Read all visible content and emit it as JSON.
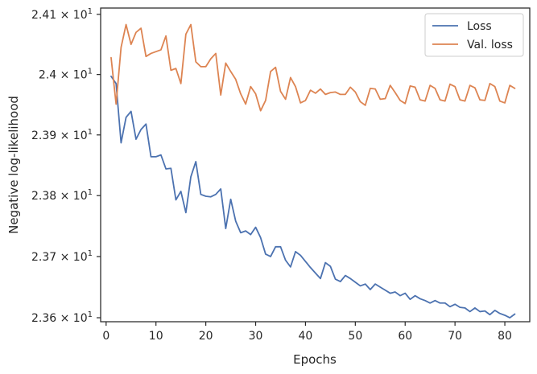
{
  "chart_data": {
    "type": "line",
    "title": "",
    "xlabel": "Epochs",
    "ylabel": "Negative log-likelihood",
    "xlim": [
      -1.1,
      85
    ],
    "ylim": [
      23.5935,
      24.1105
    ],
    "y_scale": "log",
    "grid": false,
    "legend_position": "top-right",
    "x_ticks": [
      0,
      10,
      20,
      30,
      40,
      50,
      60,
      70,
      80
    ],
    "y_ticks": [
      {
        "value": 23.6,
        "mantissa": "2.36",
        "base": "10",
        "exp": "1"
      },
      {
        "value": 23.7,
        "mantissa": "2.37",
        "base": "10",
        "exp": "1"
      },
      {
        "value": 23.8,
        "mantissa": "2.38",
        "base": "10",
        "exp": "1"
      },
      {
        "value": 23.9,
        "mantissa": "2.39",
        "base": "10",
        "exp": "1"
      },
      {
        "value": 24.0,
        "mantissa": "2.4",
        "base": "10",
        "exp": "1"
      },
      {
        "value": 24.1,
        "mantissa": "2.41",
        "base": "10",
        "exp": "1"
      }
    ],
    "x": [
      1,
      2,
      3,
      4,
      5,
      6,
      7,
      8,
      9,
      10,
      11,
      12,
      13,
      14,
      15,
      16,
      17,
      18,
      19,
      20,
      21,
      22,
      23,
      24,
      25,
      26,
      27,
      28,
      29,
      30,
      31,
      32,
      33,
      34,
      35,
      36,
      37,
      38,
      39,
      40,
      41,
      42,
      43,
      44,
      45,
      46,
      47,
      48,
      49,
      50,
      51,
      52,
      53,
      54,
      55,
      56,
      57,
      58,
      59,
      60,
      61,
      62,
      63,
      64,
      65,
      66,
      67,
      68,
      69,
      70,
      71,
      72,
      73,
      74,
      75,
      76,
      77,
      78,
      79,
      80,
      81,
      82
    ],
    "series": [
      {
        "name": "Loss",
        "color": "#4c72b0",
        "values": [
          23.997,
          23.985,
          23.887,
          23.929,
          23.939,
          23.893,
          23.909,
          23.918,
          23.864,
          23.864,
          23.867,
          23.844,
          23.845,
          23.793,
          23.807,
          23.772,
          23.831,
          23.856,
          23.802,
          23.799,
          23.798,
          23.802,
          23.811,
          23.746,
          23.794,
          23.758,
          23.739,
          23.742,
          23.736,
          23.748,
          23.731,
          23.704,
          23.7,
          23.716,
          23.716,
          23.694,
          23.683,
          23.708,
          23.702,
          23.692,
          23.682,
          23.673,
          23.664,
          23.69,
          23.684,
          23.663,
          23.659,
          23.669,
          23.664,
          23.658,
          23.652,
          23.655,
          23.646,
          23.655,
          23.65,
          23.645,
          23.64,
          23.642,
          23.636,
          23.64,
          23.63,
          23.636,
          23.631,
          23.628,
          23.624,
          23.628,
          23.624,
          23.624,
          23.618,
          23.622,
          23.617,
          23.616,
          23.61,
          23.616,
          23.61,
          23.611,
          23.605,
          23.612,
          23.607,
          23.604,
          23.6,
          23.606
        ]
      },
      {
        "name": "Val. loss",
        "color": "#dd8452",
        "values": [
          24.028,
          23.951,
          24.045,
          24.083,
          24.05,
          24.07,
          24.077,
          24.03,
          24.035,
          24.038,
          24.041,
          24.064,
          24.007,
          24.01,
          23.985,
          24.067,
          24.083,
          24.021,
          24.013,
          24.013,
          24.026,
          24.035,
          23.966,
          24.019,
          24.005,
          23.992,
          23.968,
          23.951,
          23.98,
          23.968,
          23.94,
          23.957,
          24.005,
          24.012,
          23.972,
          23.959,
          23.995,
          23.98,
          23.953,
          23.957,
          23.974,
          23.969,
          23.976,
          23.967,
          23.97,
          23.971,
          23.967,
          23.967,
          23.979,
          23.971,
          23.955,
          23.949,
          23.977,
          23.976,
          23.959,
          23.96,
          23.982,
          23.97,
          23.957,
          23.952,
          23.981,
          23.979,
          23.958,
          23.956,
          23.982,
          23.977,
          23.958,
          23.956,
          23.984,
          23.98,
          23.958,
          23.956,
          23.982,
          23.978,
          23.958,
          23.957,
          23.985,
          23.98,
          23.956,
          23.953,
          23.982,
          23.977
        ]
      }
    ]
  }
}
